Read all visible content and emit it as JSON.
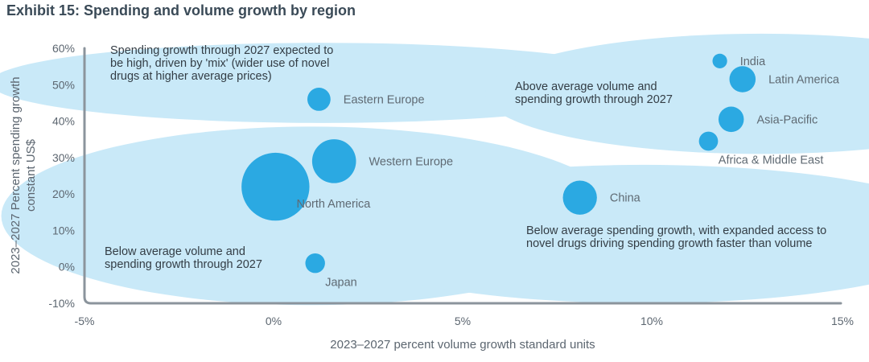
{
  "title": "Exhibit 15: Spending and volume growth by region",
  "chart_data": {
    "type": "scatter",
    "subtype": "bubble",
    "title": "Exhibit 15: Spending and volume growth by region",
    "xlabel": "2023–2027 percent volume growth standard units",
    "ylabel": [
      "2023–2027 Percent spending growth",
      "constant US$"
    ],
    "xlim": [
      -5,
      15
    ],
    "ylim": [
      -10,
      60
    ],
    "xticks": [
      {
        "value": -5,
        "label": "-5%"
      },
      {
        "value": 0,
        "label": "0%"
      },
      {
        "value": 5,
        "label": "5%"
      },
      {
        "value": 10,
        "label": "10%"
      },
      {
        "value": 15,
        "label": "15%"
      }
    ],
    "yticks": [
      {
        "value": 60,
        "label": "60%"
      },
      {
        "value": 50,
        "label": "50%"
      },
      {
        "value": 40,
        "label": "40%"
      },
      {
        "value": 30,
        "label": "30%"
      },
      {
        "value": 20,
        "label": "20%"
      },
      {
        "value": 10,
        "label": "10%"
      },
      {
        "value": 0,
        "label": "0%"
      },
      {
        "value": -10,
        "label": "-10%"
      }
    ],
    "points": [
      {
        "label": "India",
        "x": 11.8,
        "y": 56.5,
        "size": 1.0,
        "label_side": "right"
      },
      {
        "label": "Latin America",
        "x": 12.4,
        "y": 51.5,
        "size": 3.2,
        "label_side": "right"
      },
      {
        "label": "Eastern Europe",
        "x": 1.2,
        "y": 46.0,
        "size": 2.5,
        "label_side": "right"
      },
      {
        "label": "Asia-Pacific",
        "x": 12.1,
        "y": 40.5,
        "size": 3.0,
        "label_side": "right"
      },
      {
        "label": "Africa & Middle East",
        "x": 11.5,
        "y": 34.5,
        "size": 1.7,
        "label_side": "below-right"
      },
      {
        "label": "Western Europe",
        "x": 1.6,
        "y": 29.0,
        "size": 9.0,
        "label_side": "right"
      },
      {
        "label": "North America",
        "x": 0.05,
        "y": 22.0,
        "size": 21.5,
        "label_side": "below-right"
      },
      {
        "label": "China",
        "x": 8.1,
        "y": 19.0,
        "size": 5.4,
        "label_side": "right"
      },
      {
        "label": "Japan",
        "x": 1.1,
        "y": 1.0,
        "size": 1.8,
        "label_side": "below-right"
      }
    ],
    "regions": [
      {
        "label": [
          "Spending growth through 2027 expected to",
          "be high, driven by 'mix' (wider use of novel",
          "drugs at higher average prices)"
        ],
        "cx": 1.3,
        "cy": 50.5,
        "rx": 8.8,
        "ry": 11.0
      },
      {
        "label": [
          "Above average volume and",
          "spending growth through 2027"
        ],
        "cx": 12.9,
        "cy": 47.5,
        "rx": 7.3,
        "ry": 16.5
      },
      {
        "label": [
          "Below average volume and",
          "spending growth through 2027"
        ],
        "cx": 1.0,
        "cy": 14.0,
        "rx": 8.2,
        "ry": 24.5
      },
      {
        "label": [
          "Below average spending growth, with expanded access to",
          "novel drugs driving spending growth faster than volume"
        ],
        "cx": 9.8,
        "cy": 9.0,
        "rx": 8.7,
        "ry": 19.0
      }
    ],
    "colors": {
      "bubble": "#2ba9e2",
      "region": "#c9e9f8",
      "axis": "#8b949c",
      "text": "#5c6670"
    }
  }
}
